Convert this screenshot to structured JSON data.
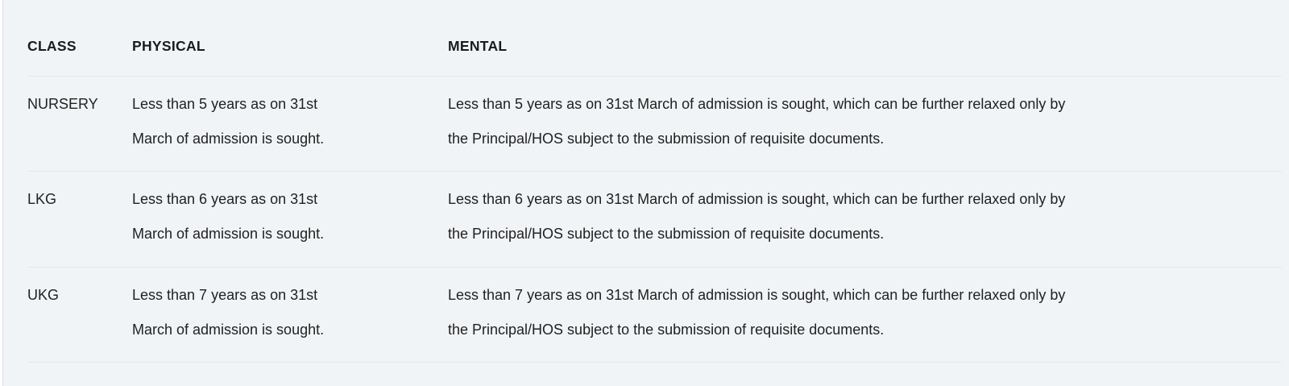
{
  "table": {
    "columns": [
      {
        "label": "CLASS"
      },
      {
        "label": "PHYSICAL"
      },
      {
        "label": "MENTAL"
      }
    ],
    "rows": [
      {
        "class": "NURSERY",
        "physical_lines": [
          "Less than 5 years as on 31st",
          "March of admission is sought."
        ],
        "mental_lines": [
          "Less than 5 years as on 31st March of admission is sought, which can be further relaxed only by",
          "the Principal/HOS subject to the submission of requisite documents."
        ]
      },
      {
        "class": "LKG",
        "physical_lines": [
          "Less than 6 years as on 31st",
          "March of admission is sought."
        ],
        "mental_lines": [
          "Less than 6 years as on 31st March of admission is sought, which can be further relaxed only by",
          "the Principal/HOS subject to the submission of requisite documents."
        ]
      },
      {
        "class": "UKG",
        "physical_lines": [
          "Less than 7 years as on 31st",
          "March of admission is sought."
        ],
        "mental_lines": [
          "Less than 7 years as on 31st March of admission is sought, which can be further relaxed only by",
          "the Principal/HOS subject to the submission of requisite documents."
        ]
      }
    ]
  },
  "colors": {
    "panel_background": "#f1f4f7",
    "divider": "#e9e5e1",
    "header_text": "#1b1b1b",
    "body_text": "#212121"
  }
}
